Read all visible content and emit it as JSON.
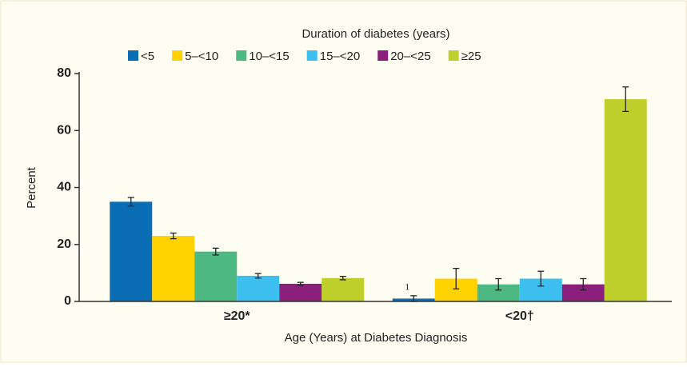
{
  "chart_data": {
    "type": "bar",
    "legend_title": "Duration of diabetes (years)",
    "xlabel": "Age (Years) at Diabetes Diagnosis",
    "ylabel": "Percent",
    "categories": [
      "≥20*",
      "<20†"
    ],
    "series": [
      {
        "name": "<5",
        "color": "#0b6db3",
        "values": [
          35,
          1
        ],
        "errors": [
          1.5,
          1
        ],
        "value_labels": [
          null,
          "1"
        ]
      },
      {
        "name": "5–<10",
        "color": "#ffd200",
        "values": [
          23,
          8
        ],
        "errors": [
          1,
          3.6
        ]
      },
      {
        "name": "10–<15",
        "color": "#4db882",
        "values": [
          17.5,
          6
        ],
        "errors": [
          1.2,
          2
        ]
      },
      {
        "name": "15–<20",
        "color": "#3dbfef",
        "values": [
          9,
          8
        ],
        "errors": [
          0.8,
          2.6
        ]
      },
      {
        "name": "20–<25",
        "color": "#8a1f7c",
        "values": [
          6.2,
          6
        ],
        "errors": [
          0.5,
          2
        ]
      },
      {
        "name": "≥25",
        "color": "#bfcf2b",
        "values": [
          8.2,
          71
        ],
        "errors": [
          0.6,
          4.3
        ]
      }
    ],
    "ylim": [
      0,
      80
    ],
    "yticks": [
      0,
      20,
      40,
      60,
      80
    ],
    "grid": false,
    "legend": "top"
  }
}
